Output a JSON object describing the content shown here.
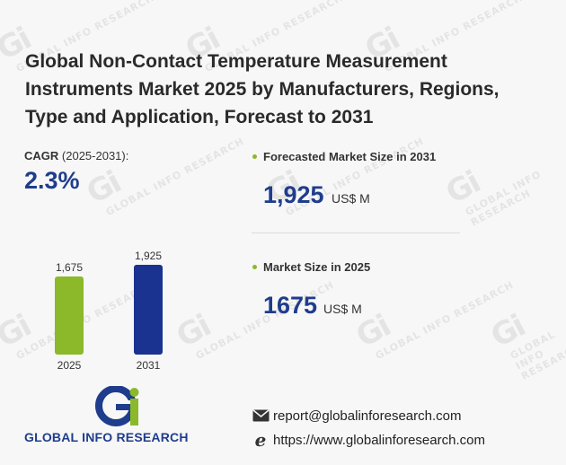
{
  "title": "Global Non-Contact Temperature Measurement Instruments Market 2025 by Manufacturers, Regions, Type and Application, Forecast to 2031",
  "cagr": {
    "label": "CAGR",
    "period": "(2025-2031):",
    "value": "2.3%"
  },
  "forecast": {
    "label": "Forecasted Market Size in 2031",
    "value": "1,925",
    "unit": "US$ M"
  },
  "current": {
    "label": "Market Size in 2025",
    "value": "1675",
    "unit": "US$ M"
  },
  "colors": {
    "accent_blue": "#1f3d8c",
    "accent_green": "#8bb92a",
    "bar_2031": "#1a3390"
  },
  "chart_data": {
    "type": "bar",
    "categories": [
      "2025",
      "2031"
    ],
    "values": [
      1675,
      1925
    ],
    "value_labels": [
      "1,675",
      "1,925"
    ],
    "colors": [
      "#8bb92a",
      "#1a3390"
    ],
    "title": "",
    "xlabel": "",
    "ylabel": "",
    "ylim": [
      0,
      1925
    ],
    "grid": false,
    "legend": "none"
  },
  "logo": {
    "mark": "Gi",
    "text": "GLOBAL INFO RESEARCH"
  },
  "watermark": {
    "mark": "Gi",
    "text": "GLOBAL INFO RESEARCH"
  },
  "contact": {
    "email_icon": "envelope-icon",
    "email": "report@globalinforesearch.com",
    "web_icon": "browser-e-icon",
    "website": "https://www.globalinforesearch.com"
  }
}
